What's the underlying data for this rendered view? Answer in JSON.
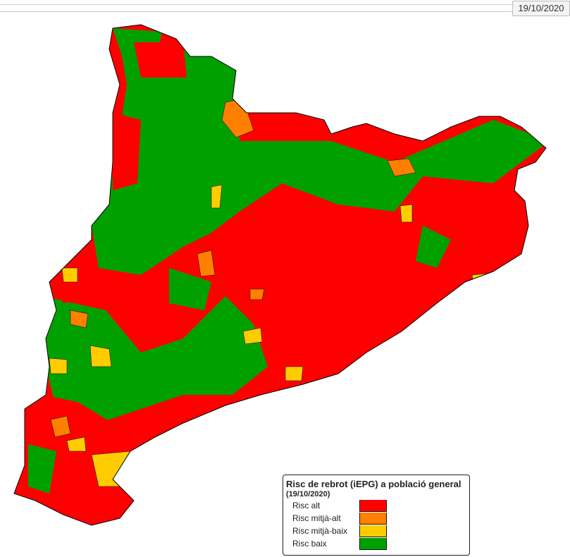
{
  "timeline": {
    "date": "19/10/2020"
  },
  "legend": {
    "title": "Risc de rebrot (iEPG) a població general",
    "subtitle": "(19/10/2020)",
    "items": [
      {
        "label": "Risc alt",
        "color": "#ff0000"
      },
      {
        "label": "Risc mitjà-alt",
        "color": "#ff8000"
      },
      {
        "label": "Risc mitjà-baix",
        "color": "#ffcc00"
      },
      {
        "label": "Risc baix",
        "color": "#00a000"
      }
    ]
  }
}
